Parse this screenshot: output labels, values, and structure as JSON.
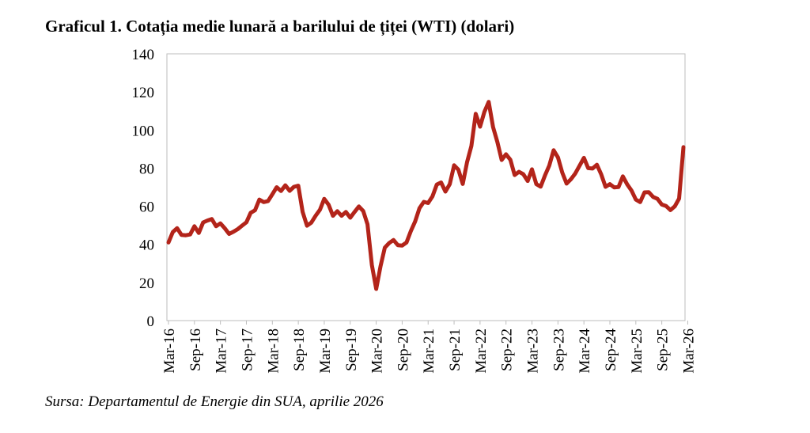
{
  "chart_data": {
    "type": "line",
    "title": "Graficul 1. Cotația medie lunară a barilului de țiței (WTI) (dolari)",
    "source": "Sursa: Departamentul de Energie din SUA, aprilie 2026",
    "xlabel": "",
    "ylabel": "",
    "ylim": [
      0,
      140
    ],
    "yticks": [
      0,
      20,
      40,
      60,
      80,
      100,
      120,
      140
    ],
    "x_start": "Mar-16",
    "x_end": "Mar-26",
    "xtick_labels": [
      "Mar-16",
      "Sep-16",
      "Mar-17",
      "Sep-17",
      "Mar-18",
      "Sep-18",
      "Mar-19",
      "Sep-19",
      "Mar-20",
      "Sep-20",
      "Mar-21",
      "Sep-21",
      "Mar-22",
      "Sep-22",
      "Mar-23",
      "Sep-23",
      "Mar-24",
      "Sep-24",
      "Mar-25",
      "Sep-25",
      "Mar-26"
    ],
    "grid": false,
    "line_color": "#b3241a",
    "series": [
      {
        "values": [
          41,
          46.5,
          48.5,
          45,
          44.8,
          45.2,
          49.5,
          46,
          51.5,
          52.5,
          53.3,
          49.5,
          51,
          48.5,
          45.5,
          46.6,
          48,
          49.8,
          51.6,
          56.6,
          57.9,
          63.5,
          62.2,
          62.7,
          66.3,
          70,
          68,
          71,
          68.1,
          70.2,
          70.8,
          57,
          49.8,
          51.4,
          55,
          58.2,
          63.9,
          60.8,
          55,
          57.4,
          55,
          57,
          54,
          57,
          59.9,
          57.5,
          50.5,
          29.2,
          16.6,
          28.6,
          38.3,
          40.7,
          42.3,
          39.6,
          39.4,
          41,
          47,
          52,
          59,
          62.3,
          61.7,
          65.2,
          71.4,
          72.5,
          67.7,
          71.6,
          81.5,
          79.2,
          71.7,
          83.2,
          91.6,
          108.5,
          101.8,
          109.6,
          114.8,
          101.6,
          93.7,
          84.3,
          87.3,
          84.4,
          76.4,
          78.1,
          76.8,
          73.3,
          79.4,
          71.6,
          70.3,
          76.1,
          81.4,
          89.4,
          85.6,
          77.7,
          71.9,
          74.2,
          77.2,
          81.3,
          85.4,
          80,
          79.8,
          81.8,
          76.7,
          70.2,
          71.6,
          69.9,
          70.1,
          75.7,
          71.5,
          68.2,
          63.5,
          62.2,
          67.3,
          67.4,
          64.9,
          63.9,
          60.9,
          60.1,
          58,
          60,
          64,
          91
        ]
      }
    ]
  }
}
